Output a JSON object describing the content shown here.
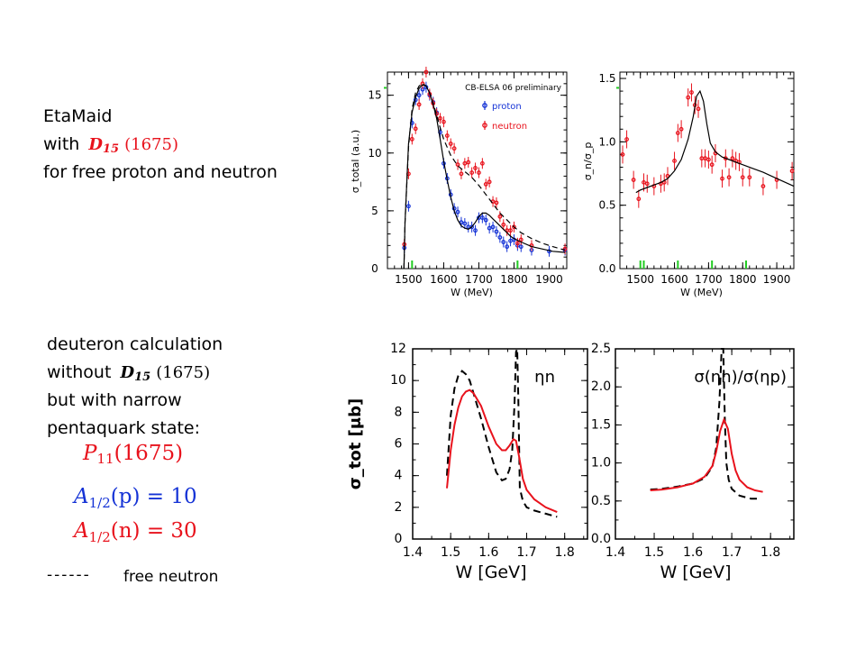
{
  "top_text": {
    "line1": "EtaMaid",
    "line2_prefix": "with",
    "line2_state": "D",
    "line2_sub": "15",
    "line2_mass": "(1675)",
    "line3": "for free proton and neutron"
  },
  "bottom_text": {
    "line1": "deuteron calculation",
    "line2_prefix": "without",
    "line2_state": "D",
    "line2_sub": "15",
    "line2_mass": "(1675)",
    "line3": "but with narrow",
    "line4": "pentaquark state:",
    "p11_state": "P",
    "p11_sub": "11",
    "p11_mass": "(1675)",
    "a_p_base": "A",
    "a_p_sub": "1/2",
    "a_p_rest": "(p) = 10",
    "a_n_base": "A",
    "a_n_sub": "1/2",
    "a_n_rest": "(n) = 30",
    "legend_dash": "------",
    "legend_label": "free neutron"
  },
  "colors": {
    "red": "#e8121c",
    "blue": "#1533d6",
    "green": "#22cc22"
  },
  "chart_data": [
    {
      "type": "line",
      "title": "CB-ELSA 06 preliminary",
      "xlabel": "W (MeV)",
      "ylabel": "σ_total (a.u.)",
      "xlim": [
        1440,
        1950
      ],
      "ylim": [
        0,
        17
      ],
      "xticks": [
        1500,
        1600,
        1700,
        1800,
        1900
      ],
      "yticks": [
        0,
        5,
        10,
        15
      ],
      "legend": [
        "proton",
        "neutron"
      ],
      "green_ticks": [
        1510,
        1810
      ],
      "series": [
        {
          "name": "proton",
          "style": "points",
          "color": "#1533d6",
          "x": [
            1488,
            1500,
            1510,
            1520,
            1530,
            1540,
            1550,
            1560,
            1570,
            1580,
            1590,
            1600,
            1610,
            1620,
            1630,
            1640,
            1650,
            1660,
            1670,
            1680,
            1690,
            1700,
            1710,
            1720,
            1730,
            1740,
            1750,
            1760,
            1770,
            1780,
            1790,
            1800,
            1810,
            1820,
            1850,
            1900,
            1945
          ],
          "y": [
            1.8,
            5.4,
            12.6,
            14.6,
            15.0,
            15.5,
            15.7,
            15.0,
            14.4,
            13.5,
            11.8,
            9.1,
            7.8,
            6.4,
            5.2,
            4.9,
            4.0,
            3.9,
            3.6,
            3.6,
            3.3,
            4.4,
            4.4,
            4.2,
            3.5,
            3.6,
            3.2,
            2.7,
            2.3,
            1.9,
            2.4,
            2.5,
            2.0,
            1.9,
            1.6,
            1.5,
            1.6
          ]
        },
        {
          "name": "neutron",
          "style": "points",
          "color": "#e8121c",
          "x": [
            1488,
            1500,
            1510,
            1520,
            1530,
            1540,
            1550,
            1560,
            1570,
            1580,
            1590,
            1600,
            1610,
            1620,
            1630,
            1640,
            1650,
            1660,
            1670,
            1680,
            1690,
            1700,
            1710,
            1720,
            1730,
            1740,
            1750,
            1760,
            1770,
            1780,
            1790,
            1800,
            1810,
            1820,
            1850,
            1945
          ],
          "y": [
            2.1,
            8.2,
            11.2,
            12.1,
            14.2,
            16.0,
            17.0,
            15.1,
            14.3,
            13.4,
            13.0,
            12.7,
            11.5,
            10.8,
            10.4,
            9.0,
            8.2,
            9.1,
            9.2,
            8.3,
            8.7,
            8.3,
            9.1,
            7.3,
            7.5,
            5.8,
            5.7,
            4.5,
            3.8,
            3.3,
            3.3,
            3.6,
            2.2,
            2.5,
            2.0,
            1.7
          ]
        },
        {
          "name": "EtaMaid proton",
          "style": "solid",
          "color": "#000000",
          "x": [
            1487,
            1490,
            1500,
            1510,
            1520,
            1530,
            1540,
            1550,
            1560,
            1570,
            1580,
            1590,
            1600,
            1610,
            1620,
            1630,
            1640,
            1650,
            1660,
            1670,
            1680,
            1690,
            1700,
            1710,
            1720,
            1730,
            1740,
            1750,
            1760,
            1770,
            1780,
            1790,
            1800,
            1820,
            1850,
            1880,
            1910,
            1945
          ],
          "y": [
            0,
            4.0,
            10.8,
            13.5,
            14.8,
            15.6,
            15.9,
            15.8,
            15.2,
            14.2,
            13.0,
            11.2,
            9.3,
            7.7,
            6.2,
            5.0,
            4.2,
            3.7,
            3.5,
            3.4,
            3.6,
            4.0,
            4.5,
            4.8,
            4.8,
            4.6,
            4.3,
            4.0,
            3.7,
            3.4,
            3.1,
            2.8,
            2.6,
            2.3,
            1.9,
            1.7,
            1.5,
            1.4
          ]
        },
        {
          "name": "EtaMaid neutron",
          "style": "dashed",
          "color": "#000000",
          "x": [
            1487,
            1490,
            1500,
            1510,
            1520,
            1530,
            1540,
            1550,
            1560,
            1570,
            1580,
            1590,
            1600,
            1620,
            1640,
            1660,
            1680,
            1700,
            1720,
            1740,
            1760,
            1780,
            1800,
            1820,
            1850,
            1880,
            1910,
            1945
          ],
          "y": [
            0,
            4.0,
            10.5,
            13.8,
            15.2,
            15.8,
            16.0,
            15.8,
            15.2,
            14.3,
            13.3,
            12.2,
            11.2,
            9.8,
            8.9,
            8.4,
            7.9,
            7.2,
            6.4,
            5.6,
            4.8,
            4.2,
            3.6,
            3.1,
            2.6,
            2.2,
            1.9,
            1.6
          ]
        }
      ]
    },
    {
      "type": "line",
      "title": "",
      "xlabel": "W (MeV)",
      "ylabel": "σ_n/σ_p",
      "xlim": [
        1440,
        1950
      ],
      "ylim": [
        0,
        1.55
      ],
      "xticks": [
        1500,
        1600,
        1700,
        1800,
        1900
      ],
      "yticks": [
        0.0,
        0.5,
        1.0,
        1.5
      ],
      "green_ticks": [
        1510,
        1610,
        1710,
        1810,
        1500
      ],
      "series": [
        {
          "name": "ratio data",
          "style": "points",
          "color": "#e8121c",
          "x": [
            1448,
            1460,
            1480,
            1495,
            1510,
            1520,
            1540,
            1560,
            1570,
            1580,
            1600,
            1610,
            1620,
            1640,
            1650,
            1660,
            1670,
            1680,
            1690,
            1700,
            1710,
            1720,
            1740,
            1750,
            1760,
            1770,
            1780,
            1790,
            1800,
            1820,
            1860,
            1900,
            1945
          ],
          "y": [
            0.9,
            1.02,
            0.7,
            0.55,
            0.68,
            0.67,
            0.65,
            0.67,
            0.68,
            0.73,
            0.85,
            1.07,
            1.1,
            1.35,
            1.39,
            1.29,
            1.26,
            0.87,
            0.87,
            0.86,
            0.82,
            0.91,
            0.71,
            0.87,
            0.72,
            0.87,
            0.85,
            0.84,
            0.72,
            0.72,
            0.65,
            0.7,
            0.77
          ]
        },
        {
          "name": "EtaMaid ratio",
          "style": "solid",
          "color": "#000000",
          "x": [
            1487,
            1500,
            1520,
            1540,
            1560,
            1580,
            1600,
            1620,
            1640,
            1655,
            1665,
            1675,
            1685,
            1695,
            1705,
            1720,
            1740,
            1760,
            1780,
            1800,
            1830,
            1860,
            1900,
            1950
          ],
          "y": [
            0.6,
            0.62,
            0.64,
            0.66,
            0.68,
            0.71,
            0.77,
            0.86,
            1.02,
            1.2,
            1.36,
            1.4,
            1.32,
            1.14,
            0.99,
            0.92,
            0.88,
            0.86,
            0.84,
            0.82,
            0.79,
            0.76,
            0.71,
            0.65
          ]
        }
      ]
    },
    {
      "type": "line",
      "title": "ηn",
      "xlabel": "W [GeV]",
      "ylabel": "σ_tot [μb]",
      "xlim": [
        1.4,
        1.86
      ],
      "ylim": [
        0,
        12
      ],
      "xticks": [
        1.4,
        1.5,
        1.6,
        1.7,
        1.8
      ],
      "yticks": [
        0,
        2,
        4,
        6,
        8,
        10,
        12
      ],
      "series": [
        {
          "name": "free neutron",
          "style": "dashed",
          "color": "#000000",
          "x": [
            1.49,
            1.5,
            1.51,
            1.52,
            1.53,
            1.54,
            1.55,
            1.56,
            1.58,
            1.6,
            1.62,
            1.635,
            1.645,
            1.655,
            1.662,
            1.668,
            1.672,
            1.675,
            1.678,
            1.682,
            1.69,
            1.7,
            1.72,
            1.75,
            1.78
          ],
          "y": [
            4.0,
            7.8,
            9.5,
            10.3,
            10.6,
            10.4,
            10.0,
            9.2,
            7.6,
            5.8,
            4.2,
            3.7,
            3.8,
            4.4,
            5.6,
            8.5,
            11.8,
            12.0,
            9.0,
            3.2,
            2.4,
            2.0,
            1.8,
            1.6,
            1.4
          ]
        },
        {
          "name": "deuteron with P11",
          "style": "solid",
          "color": "#e8121c",
          "x": [
            1.49,
            1.5,
            1.51,
            1.52,
            1.53,
            1.54,
            1.55,
            1.56,
            1.58,
            1.6,
            1.62,
            1.635,
            1.645,
            1.655,
            1.665,
            1.672,
            1.68,
            1.69,
            1.7,
            1.72,
            1.75,
            1.78
          ],
          "y": [
            3.2,
            5.6,
            7.2,
            8.3,
            9.0,
            9.3,
            9.4,
            9.2,
            8.4,
            7.1,
            6.0,
            5.6,
            5.6,
            5.9,
            6.3,
            6.2,
            5.2,
            3.8,
            3.1,
            2.5,
            2.0,
            1.7
          ]
        }
      ]
    },
    {
      "type": "line",
      "title": "σ(ηn)/σ(ηp)",
      "xlabel": "W [GeV]",
      "ylabel": "",
      "xlim": [
        1.4,
        1.86
      ],
      "ylim": [
        0,
        2.5
      ],
      "xticks": [
        1.4,
        1.5,
        1.6,
        1.7,
        1.8
      ],
      "yticks": [
        0.0,
        0.5,
        1.0,
        1.5,
        2.0,
        2.5
      ],
      "series": [
        {
          "name": "free neutron",
          "style": "dashed",
          "color": "#000000",
          "x": [
            1.49,
            1.52,
            1.56,
            1.6,
            1.63,
            1.65,
            1.66,
            1.668,
            1.674,
            1.678,
            1.682,
            1.686,
            1.692,
            1.7,
            1.72,
            1.75,
            1.77
          ],
          "y": [
            0.65,
            0.66,
            0.69,
            0.73,
            0.8,
            0.95,
            1.2,
            1.8,
            2.5,
            2.5,
            1.6,
            1.0,
            0.78,
            0.66,
            0.57,
            0.53,
            0.53
          ]
        },
        {
          "name": "deuteron with P11",
          "style": "solid",
          "color": "#e8121c",
          "x": [
            1.49,
            1.52,
            1.56,
            1.6,
            1.63,
            1.65,
            1.66,
            1.67,
            1.68,
            1.69,
            1.7,
            1.71,
            1.72,
            1.74,
            1.76,
            1.78
          ],
          "y": [
            0.64,
            0.65,
            0.68,
            0.73,
            0.82,
            0.96,
            1.15,
            1.42,
            1.57,
            1.45,
            1.12,
            0.9,
            0.78,
            0.68,
            0.64,
            0.62
          ]
        }
      ]
    }
  ]
}
